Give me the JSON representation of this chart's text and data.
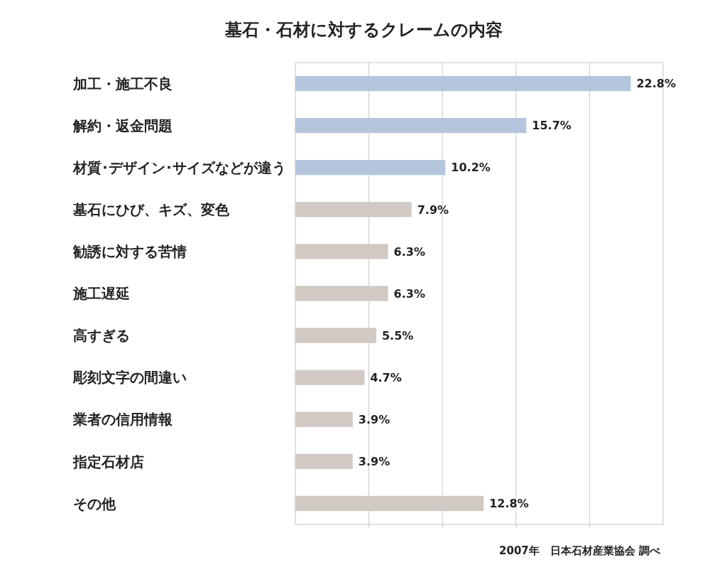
{
  "chart_data": {
    "type": "bar",
    "orientation": "horizontal",
    "title": "墓石・石材に対するクレームの内容",
    "categories": [
      "加工・施工不良",
      "解約・返金問題",
      "材質･デザイン･サイズなどが違う",
      "墓石にひび、キズ、変色",
      "勧誘に対する苦情",
      "施工遅延",
      "高すぎる",
      "彫刻文字の間違い",
      "業者の信用情報",
      "指定石材店",
      "その他"
    ],
    "values": [
      22.8,
      15.7,
      10.2,
      7.9,
      6.3,
      6.3,
      5.5,
      4.7,
      3.9,
      3.9,
      12.8
    ],
    "colors": [
      "#b5c5dc",
      "#b5c5dc",
      "#b5c5dc",
      "#d0c9c4",
      "#d0c9c4",
      "#d0c9c4",
      "#d0c9c4",
      "#d0c9c4",
      "#d0c9c4",
      "#d0c9c4",
      "#d0c9c4"
    ],
    "value_labels": [
      "22.8%",
      "15.7%",
      "10.2%",
      "7.9%",
      "6.3%",
      "6.3%",
      "5.5%",
      "4.7%",
      "3.9%",
      "3.9%",
      "12.8%"
    ],
    "xlim": [
      0,
      25
    ],
    "xticks": [
      {
        "value": 5,
        "label": null
      },
      {
        "value": 10,
        "label": null
      },
      {
        "value": 15,
        "label": null
      },
      {
        "value": 20,
        "label": null
      }
    ],
    "grid": "x",
    "tick_labels": "y",
    "annotations": [
      "2007年　日本石材産業協会 調べ"
    ]
  }
}
